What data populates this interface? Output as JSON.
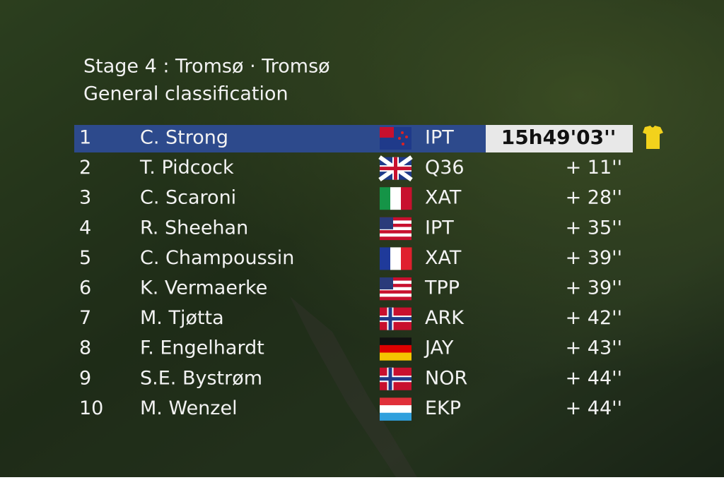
{
  "header": {
    "stage": "Stage 4 : Tromsø · Tromsø",
    "classification": "General classification"
  },
  "table": {
    "rows": [
      [
        "1",
        "C. Strong",
        "IPT",
        "15h49'03''"
      ],
      [
        "2",
        "T. Pidcock",
        "Q36",
        "+ 11''"
      ],
      [
        "3",
        "C. Scaroni",
        "XAT",
        "+ 28''"
      ],
      [
        "4",
        "R. Sheehan",
        "IPT",
        "+ 35''"
      ],
      [
        "5",
        "C. Champoussin",
        "XAT",
        "+ 39''"
      ],
      [
        "6",
        "K. Vermaerke",
        "TPP",
        "+ 39''"
      ],
      [
        "7",
        "M. Tjøtta",
        "ARK",
        "+ 42''"
      ],
      [
        "8",
        "F. Engelhardt",
        "JAY",
        "+ 43''"
      ],
      [
        "9",
        "S.E. Bystrøm",
        "NOR",
        "+ 44''"
      ],
      [
        "10",
        "M. Wenzel",
        "EKP",
        "+ 44''"
      ]
    ]
  }
}
